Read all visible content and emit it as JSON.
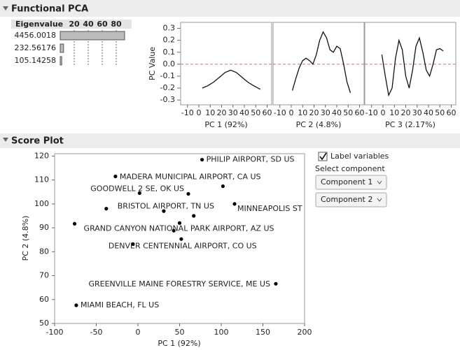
{
  "functional_pca": {
    "title": "Functional PCA",
    "eigen_table": {
      "header": "Eigenvalue",
      "eigenvalues": [
        "4456.0018",
        "232.56176",
        "105.14258"
      ],
      "percent": [
        92,
        4.8,
        2.17
      ],
      "xlim": [
        -3,
        100
      ],
      "xticks": [
        20,
        40,
        60,
        80
      ]
    },
    "pc_plots": {
      "y_label": "PC Value",
      "xlim": [
        -16,
        64
      ],
      "xticks": [
        -10,
        0,
        10,
        20,
        30,
        40,
        50,
        60
      ],
      "ylim": [
        -0.34,
        0.35
      ],
      "yticks": [
        -0.3,
        -0.2,
        -0.1,
        {
          "value": 0,
          "label": "0.0"
        },
        0.1,
        0.2,
        0.3
      ],
      "panels": [
        {
          "x_label": "PC 1 (92%)",
          "x": [
            3,
            8,
            13,
            18,
            23,
            28,
            33,
            38,
            43,
            48,
            54
          ],
          "values": [
            -0.2,
            -0.18,
            -0.15,
            -0.11,
            -0.07,
            -0.05,
            -0.07,
            -0.11,
            -0.15,
            -0.18,
            -0.21
          ]
        },
        {
          "x_label": "PC 2 (4.8%)",
          "x": [
            1,
            4,
            7,
            10,
            13,
            16,
            19,
            22,
            25,
            28,
            31,
            34,
            37,
            40,
            43,
            46,
            49,
            52
          ],
          "values": [
            -0.22,
            -0.12,
            -0.03,
            0.03,
            0.05,
            0.03,
            0,
            0.08,
            0.2,
            0.27,
            0.22,
            0.12,
            0.1,
            0.15,
            0.13,
            0,
            -0.15,
            -0.24
          ]
        },
        {
          "x_label": "PC 3 (2.17%)",
          "x": [
            -1,
            2,
            5,
            8,
            11,
            14,
            17,
            20,
            23,
            26,
            29,
            32,
            35,
            38,
            41,
            44,
            47,
            50,
            53
          ],
          "values": [
            0.08,
            -0.1,
            -0.26,
            -0.2,
            0.05,
            0.2,
            0.12,
            -0.1,
            -0.2,
            -0.05,
            0.15,
            0.22,
            0.1,
            -0.05,
            -0.1,
            0,
            0.12,
            0.13,
            0.11
          ]
        }
      ]
    }
  },
  "score_plot": {
    "title": "Score Plot",
    "x_label": "PC 1 (92%)",
    "y_label": "PC 2 (4.8%)",
    "xlim": [
      -100,
      200
    ],
    "xticks": [
      -100,
      -50,
      0,
      50,
      100,
      150,
      200
    ],
    "ylim": [
      50,
      121
    ],
    "yticks": [
      50,
      60,
      70,
      80,
      90,
      100,
      110,
      120
    ],
    "x": [
      77,
      -27,
      102,
      2,
      60.5,
      116,
      -38,
      31,
      67,
      -76,
      50,
      43,
      52,
      -6,
      165.5,
      -74
    ],
    "y": [
      118.5,
      111.5,
      107.4,
      104.5,
      104.2,
      100,
      98,
      97,
      95,
      91.7,
      92,
      88.8,
      85.3,
      83.2,
      66.6,
      57.6
    ],
    "labels": [
      "PHILIP AIRPORT, SD US",
      "MADERA MUNICIPAL AIRPORT, CA US",
      null,
      null,
      "GOODWELL 2 SE, OK US",
      "MINNEAPOLIS ST P",
      "BRISTOL AIRPORT, TN US",
      null,
      null,
      "GRAND CANYON NATIONAL PARK AIRPORT, AZ US",
      null,
      null,
      null,
      "DENVER CENTENNIAL AIRPORT, CO US",
      "GREENVILLE MAINE FORESTRY SERVICE, ME US",
      "MIAMI BEACH, FL US"
    ]
  },
  "controls": {
    "checkbox_label": "Label variables",
    "checked": true,
    "select_label": "Select component",
    "dropdowns": [
      "Component 1",
      "Component 2"
    ]
  }
}
